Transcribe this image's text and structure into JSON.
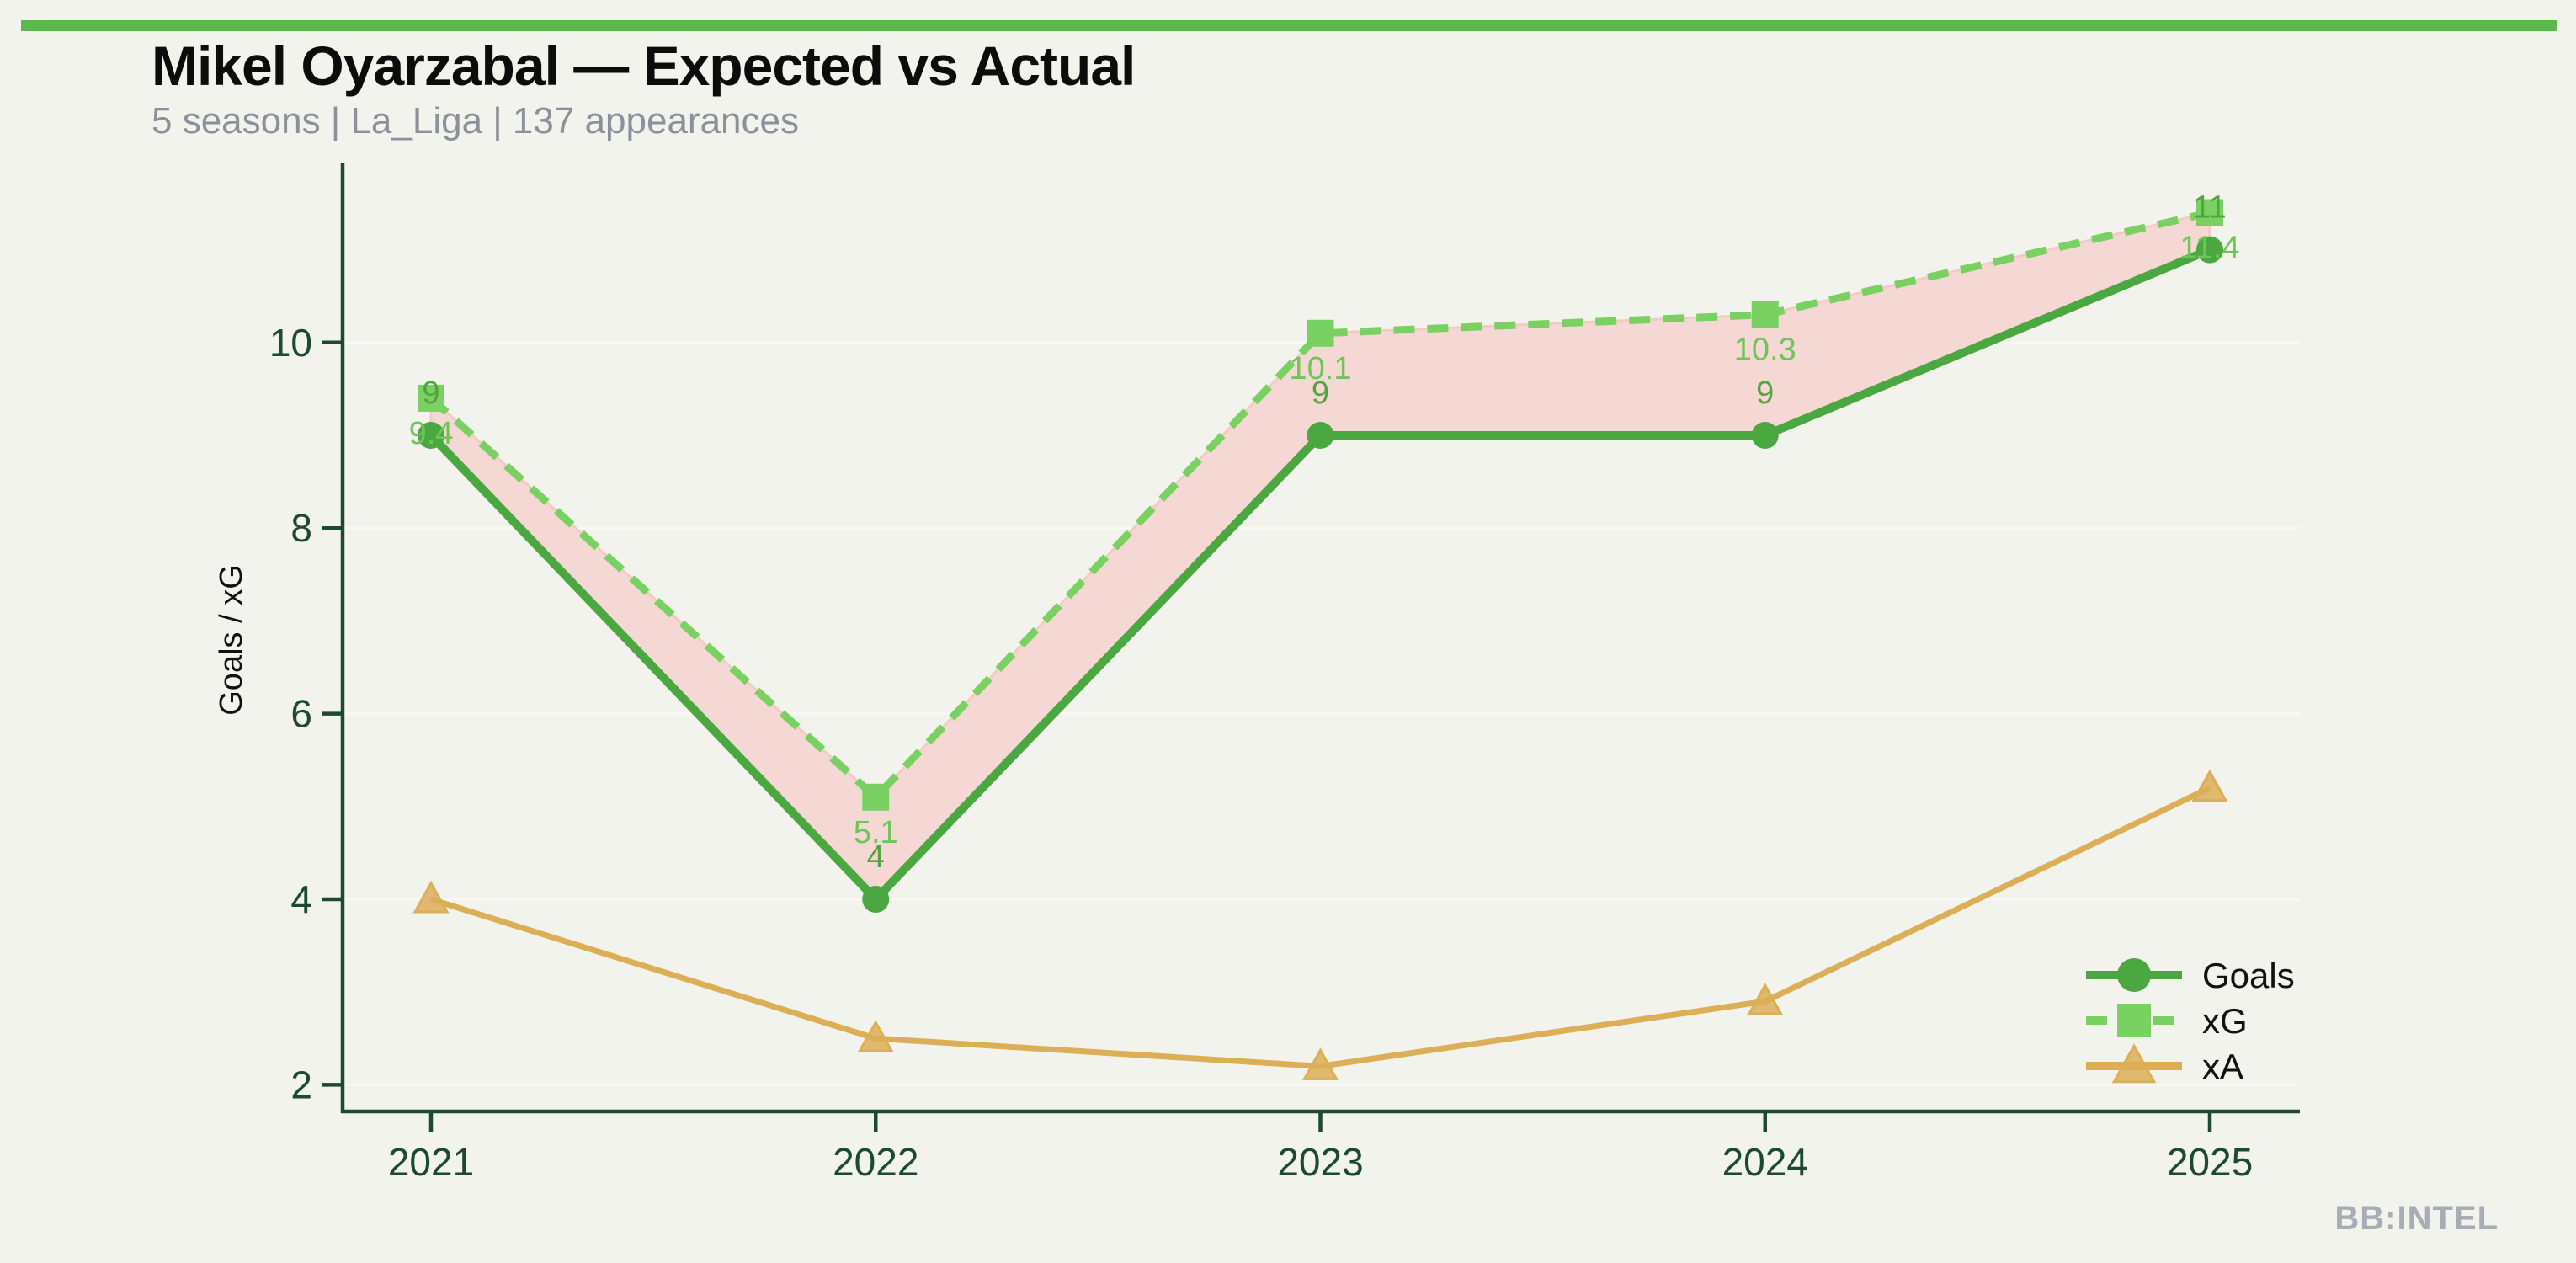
{
  "header": {
    "title": "Mikel Oyarzabal — Expected vs Actual",
    "subtitle": "5 seasons | La_Liga | 137 appearances"
  },
  "watermark": "BB:INTEL",
  "colors": {
    "background": "#f2f3ec",
    "accent_bar": "#5bb84b",
    "axis": "#1d4a2f",
    "grid": "#f8f9f2",
    "title": "#0c0c0c",
    "subtitle": "#8b919b",
    "watermark": "#a7acb5",
    "goals": "#4ba840",
    "xg": "#79d162",
    "xa": "#dcae57",
    "fill_between": "#f5d8d3",
    "fill_edge": "#f3cbc5",
    "goals_label": "#53a441",
    "xg_label": "#6fc658"
  },
  "chart_data": {
    "type": "line",
    "title": "Mikel Oyarzabal — Expected vs Actual",
    "subtitle": "5 seasons | La_Liga | 137 appearances",
    "x": [
      2021,
      2022,
      2023,
      2024,
      2025
    ],
    "xticks": [
      "2021",
      "2022",
      "2023",
      "2024",
      "2025"
    ],
    "yticks": [
      2,
      4,
      6,
      8,
      10
    ],
    "ylim": [
      1.7,
      12.0
    ],
    "ylabel": "Goals / xG",
    "xlabel": "",
    "grid": "faint-horizontal",
    "legend_position": "lower right",
    "series": [
      {
        "name": "Goals",
        "values": [
          9,
          4,
          9,
          9,
          11
        ],
        "labels": [
          "9",
          "4",
          "9",
          "9",
          "11"
        ],
        "marker": "circle",
        "line_style": "solid",
        "color_key": "goals",
        "label_color_key": "goals_label"
      },
      {
        "name": "xG",
        "values": [
          9.4,
          5.1,
          10.1,
          10.3,
          11.4
        ],
        "labels": [
          "9.4",
          "5.1",
          "10.1",
          "10.3",
          "11.4"
        ],
        "marker": "square",
        "line_style": "dashed",
        "color_key": "xg",
        "label_color_key": "xg_label"
      },
      {
        "name": "xA",
        "values": [
          4.0,
          2.5,
          2.2,
          2.9,
          5.2
        ],
        "labels": [],
        "marker": "triangle",
        "line_style": "solid",
        "color_key": "xa",
        "label_color_key": "xa"
      }
    ],
    "fill_between": {
      "upper": "xG",
      "lower": "Goals",
      "color_key": "fill_between"
    }
  }
}
